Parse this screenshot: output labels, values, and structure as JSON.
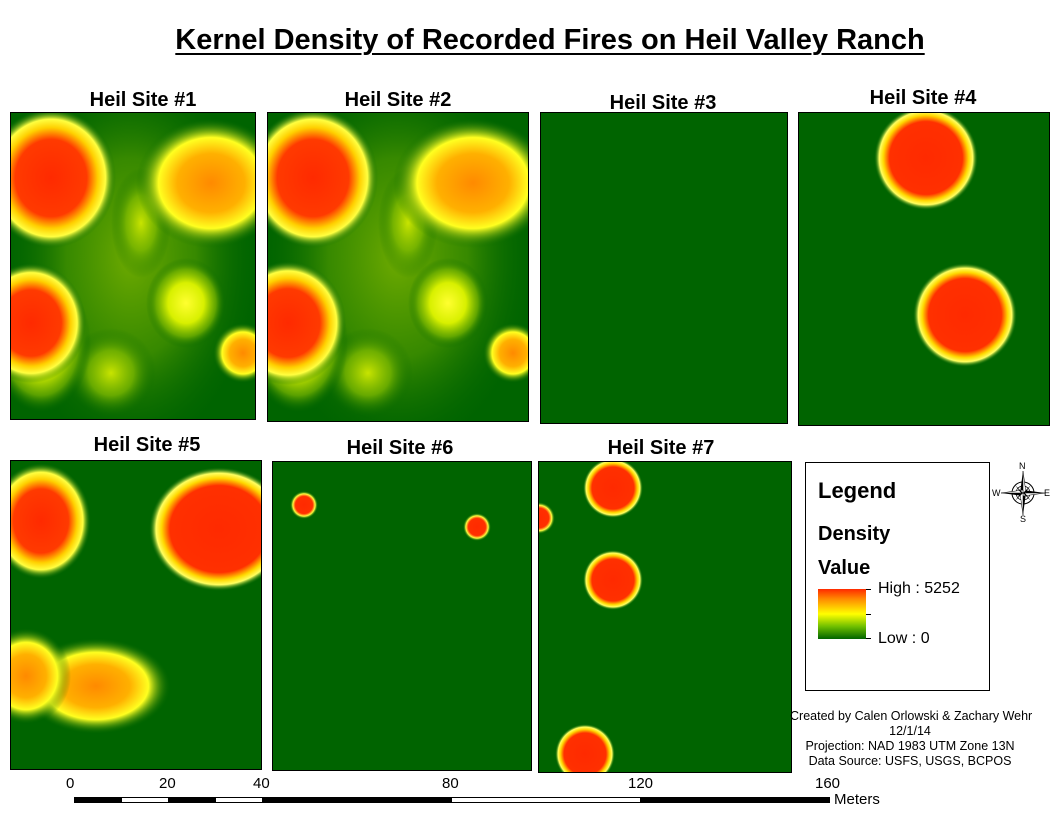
{
  "map": {
    "title": "Kernel Density of Recorded Fires on Heil Valley Ranch",
    "panels": [
      {
        "label": "Heil Site #1"
      },
      {
        "label": "Heil Site #2"
      },
      {
        "label": "Heil Site #3"
      },
      {
        "label": "Heil Site #4"
      },
      {
        "label": "Heil Site #5"
      },
      {
        "label": "Heil Site #6"
      },
      {
        "label": "Heil Site #7"
      }
    ]
  },
  "legend": {
    "title": "Legend",
    "field": "Density",
    "subtitle": "Value",
    "high_label": "High : 5252",
    "low_label": "Low : 0",
    "colors": {
      "high": "#ff2a00",
      "mid": "#ffff00",
      "low": "#006400"
    }
  },
  "compass": {
    "n": "N",
    "s": "S",
    "e": "E",
    "w": "W"
  },
  "credits": {
    "authors": "Created by Calen Orlowski & Zachary Wehr",
    "date": "12/1/14",
    "projection": "Projection: NAD 1983 UTM Zone 13N",
    "source": "Data Source: USFS, USGS, BCPOS"
  },
  "scale": {
    "ticks": [
      "0",
      "20",
      "40",
      "80",
      "120",
      "160"
    ],
    "units": "Meters"
  }
}
